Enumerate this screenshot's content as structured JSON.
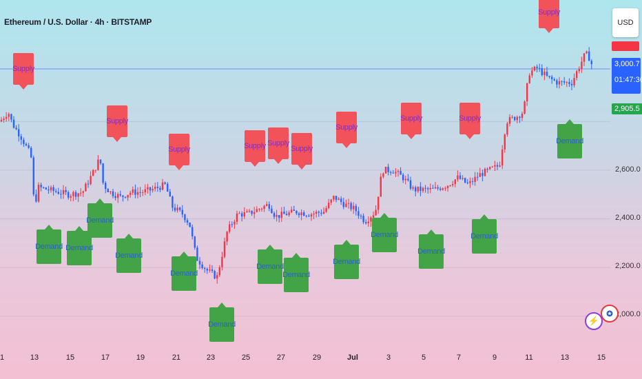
{
  "header": {
    "title": "Ethereum / U.S. Dollar · 4h · BITSTAMP"
  },
  "currency_button": "USD",
  "price_axis": {
    "labels": [
      "2,600.0",
      "2,400.0",
      "2,200.0",
      "2,000.0"
    ],
    "current_price": "3,000.7",
    "countdown": "01:47:36",
    "secondary_price": "2,905.5",
    "colors": {
      "current": "#2962ff",
      "secondary": "#26a64c",
      "top": "#f23645"
    }
  },
  "time_axis": {
    "labels": [
      "1",
      "13",
      "15",
      "17",
      "19",
      "21",
      "23",
      "25",
      "27",
      "29",
      "Jul",
      "3",
      "5",
      "7",
      "9",
      "11",
      "13",
      "15"
    ]
  },
  "signals": {
    "supply_label": "Supply",
    "demand_label": "Demand"
  },
  "chart_data": {
    "type": "candlestick",
    "symbol": "Ethereum / U.S. Dollar",
    "interval": "4h",
    "exchange": "BITSTAMP",
    "ylim": [
      1900,
      3300
    ],
    "horizontal_line": 3000.7,
    "path": [
      [
        0,
        2800
      ],
      [
        12,
        2840
      ],
      [
        18,
        2790
      ],
      [
        30,
        2740
      ],
      [
        45,
        2660
      ],
      [
        50,
        2440
      ],
      [
        55,
        2530
      ],
      [
        70,
        2520
      ],
      [
        85,
        2510
      ],
      [
        100,
        2500
      ],
      [
        120,
        2510
      ],
      [
        135,
        2590
      ],
      [
        145,
        2650
      ],
      [
        150,
        2540
      ],
      [
        160,
        2510
      ],
      [
        175,
        2490
      ],
      [
        190,
        2510
      ],
      [
        205,
        2510
      ],
      [
        220,
        2520
      ],
      [
        240,
        2540
      ],
      [
        250,
        2450
      ],
      [
        265,
        2420
      ],
      [
        275,
        2380
      ],
      [
        285,
        2240
      ],
      [
        300,
        2190
      ],
      [
        315,
        2160
      ],
      [
        330,
        2350
      ],
      [
        345,
        2420
      ],
      [
        360,
        2420
      ],
      [
        375,
        2440
      ],
      [
        390,
        2460
      ],
      [
        400,
        2410
      ],
      [
        415,
        2420
      ],
      [
        430,
        2430
      ],
      [
        450,
        2420
      ],
      [
        470,
        2430
      ],
      [
        485,
        2490
      ],
      [
        500,
        2460
      ],
      [
        515,
        2440
      ],
      [
        530,
        2390
      ],
      [
        545,
        2430
      ],
      [
        555,
        2600
      ],
      [
        570,
        2600
      ],
      [
        585,
        2570
      ],
      [
        600,
        2520
      ],
      [
        610,
        2520
      ],
      [
        630,
        2520
      ],
      [
        650,
        2540
      ],
      [
        665,
        2570
      ],
      [
        680,
        2540
      ],
      [
        695,
        2580
      ],
      [
        710,
        2600
      ],
      [
        725,
        2620
      ],
      [
        735,
        2800
      ],
      [
        750,
        2820
      ],
      [
        760,
        2840
      ],
      [
        768,
        3000
      ],
      [
        780,
        3020
      ],
      [
        795,
        2980
      ],
      [
        810,
        2960
      ],
      [
        830,
        2960
      ],
      [
        840,
        3020
      ],
      [
        850,
        3080
      ],
      [
        856,
        3060
      ],
      [
        862,
        3010
      ]
    ],
    "signals": [
      {
        "type": "supply",
        "x": 34,
        "y_box": 100
      },
      {
        "type": "supply",
        "x": 170,
        "y_box": 176
      },
      {
        "type": "supply",
        "x": 260,
        "y_box": 217
      },
      {
        "type": "supply",
        "x": 370,
        "y_box": 212
      },
      {
        "type": "supply",
        "x": 404,
        "y_box": 208
      },
      {
        "type": "supply",
        "x": 438,
        "y_box": 216
      },
      {
        "type": "supply",
        "x": 503,
        "y_box": 185
      },
      {
        "type": "supply",
        "x": 597,
        "y_box": 172
      },
      {
        "type": "supply",
        "x": 682,
        "y_box": 172
      },
      {
        "type": "supply",
        "x": 797,
        "y_box": 18
      },
      {
        "type": "demand",
        "x": 71,
        "y_box": 358
      },
      {
        "type": "demand",
        "x": 115,
        "y_box": 360
      },
      {
        "type": "demand",
        "x": 145,
        "y_box": 320
      },
      {
        "type": "demand",
        "x": 187,
        "y_box": 371
      },
      {
        "type": "demand",
        "x": 267,
        "y_box": 397
      },
      {
        "type": "demand",
        "x": 322,
        "y_box": 471
      },
      {
        "type": "demand",
        "x": 392,
        "y_box": 387
      },
      {
        "type": "demand",
        "x": 430,
        "y_box": 399
      },
      {
        "type": "demand",
        "x": 503,
        "y_box": 380
      },
      {
        "type": "demand",
        "x": 558,
        "y_box": 341
      },
      {
        "type": "demand",
        "x": 626,
        "y_box": 365
      },
      {
        "type": "demand",
        "x": 703,
        "y_box": 343
      },
      {
        "type": "demand",
        "x": 827,
        "y_box": 205
      }
    ]
  }
}
